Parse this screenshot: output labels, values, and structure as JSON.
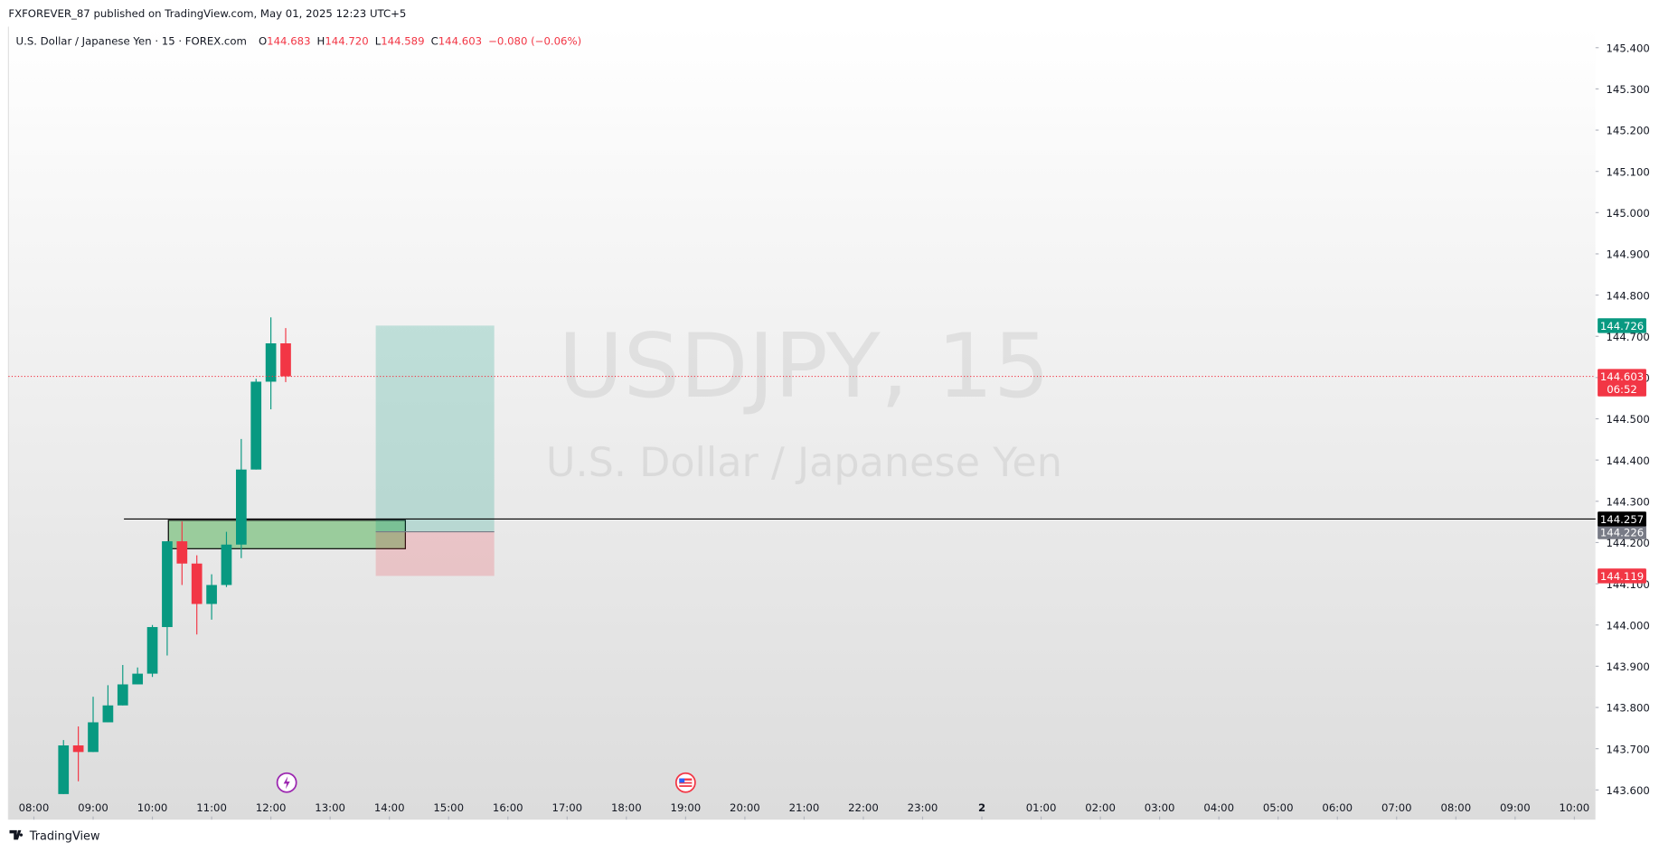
{
  "header": "FXFOREVER_87 published on TradingView.com, May 01, 2025 12:23 UTC+5",
  "footer": "TradingView",
  "chart_data": {
    "type": "candlestick",
    "symbol": "U.S. Dollar / Japanese Yen · 15 · FOREX.com",
    "legend": [
      {
        "label": "O",
        "value": "144.683"
      },
      {
        "label": "H",
        "value": "144.720"
      },
      {
        "label": "L",
        "value": "144.589"
      },
      {
        "label": "C",
        "value": "144.603"
      }
    ],
    "change": "−0.080 (−0.06%)",
    "watermark": [
      "USDJPY, 15",
      "U.S. Dollar / Japanese Yen"
    ],
    "up_color": "#089981",
    "down_color": "#f23645",
    "x": [
      8.5,
      8.75,
      9,
      9.25,
      9.5,
      9.75,
      10,
      10.25,
      10.5,
      10.75,
      11,
      11.25,
      11.5,
      11.75,
      12,
      12.25
    ],
    "open": [
      143.59,
      143.708,
      143.692,
      143.764,
      143.805,
      143.856,
      143.882,
      143.995,
      144.203,
      144.149,
      144.051,
      144.097,
      144.195,
      144.377,
      144.59,
      144.683
    ],
    "high": [
      143.721,
      143.754,
      143.826,
      143.854,
      143.903,
      143.897,
      144.0,
      144.203,
      144.251,
      144.169,
      144.123,
      144.226,
      144.451,
      144.597,
      144.746,
      144.72
    ],
    "low": [
      143.59,
      143.621,
      143.692,
      143.764,
      143.805,
      143.856,
      143.874,
      143.926,
      144.097,
      143.977,
      144.013,
      144.092,
      144.162,
      144.377,
      144.523,
      144.589
    ],
    "close": [
      143.708,
      143.692,
      143.764,
      143.805,
      143.856,
      143.882,
      143.995,
      144.203,
      144.149,
      144.051,
      144.097,
      144.195,
      144.377,
      144.59,
      144.683,
      144.603
    ],
    "xlim": [
      7.571,
      34.357
    ],
    "xticks": [
      {
        "value": 8,
        "label": "08:00"
      },
      {
        "value": 9,
        "label": "09:00"
      },
      {
        "value": 10,
        "label": "10:00"
      },
      {
        "value": 11,
        "label": "11:00"
      },
      {
        "value": 12,
        "label": "12:00"
      },
      {
        "value": 13,
        "label": "13:00"
      },
      {
        "value": 14,
        "label": "14:00"
      },
      {
        "value": 15,
        "label": "15:00"
      },
      {
        "value": 16,
        "label": "16:00"
      },
      {
        "value": 17,
        "label": "17:00"
      },
      {
        "value": 18,
        "label": "18:00"
      },
      {
        "value": 19,
        "label": "19:00"
      },
      {
        "value": 20,
        "label": "20:00"
      },
      {
        "value": 21,
        "label": "21:00"
      },
      {
        "value": 22,
        "label": "22:00"
      },
      {
        "value": 23,
        "label": "23:00"
      },
      {
        "value": 24,
        "label": "2"
      },
      {
        "value": 25,
        "label": "01:00"
      },
      {
        "value": 26,
        "label": "02:00"
      },
      {
        "value": 27,
        "label": "03:00"
      },
      {
        "value": 28,
        "label": "04:00"
      },
      {
        "value": 29,
        "label": "05:00"
      },
      {
        "value": 30,
        "label": "06:00"
      },
      {
        "value": 31,
        "label": "07:00"
      },
      {
        "value": 32,
        "label": "08:00"
      },
      {
        "value": 33,
        "label": "09:00"
      },
      {
        "value": 34,
        "label": "10:00"
      }
    ],
    "ylim": [
      143.528,
      145.451
    ],
    "yticks": [
      {
        "value": 145.4,
        "label": "145.400"
      },
      {
        "value": 145.3,
        "label": "145.300"
      },
      {
        "value": 145.2,
        "label": "145.200"
      },
      {
        "value": 145.1,
        "label": "145.100"
      },
      {
        "value": 145.0,
        "label": "145.000"
      },
      {
        "value": 144.9,
        "label": "144.900"
      },
      {
        "value": 144.8,
        "label": "144.800"
      },
      {
        "value": 144.7,
        "label": "144.700"
      },
      {
        "value": 144.6,
        "label": "144.600"
      },
      {
        "value": 144.5,
        "label": "144.500"
      },
      {
        "value": 144.4,
        "label": "144.400"
      },
      {
        "value": 144.3,
        "label": "144.300"
      },
      {
        "value": 144.2,
        "label": "144.200"
      },
      {
        "value": 144.1,
        "label": "144.100"
      },
      {
        "value": 144.0,
        "label": "144.000"
      },
      {
        "value": 143.9,
        "label": "143.900"
      },
      {
        "value": 143.8,
        "label": "143.800"
      },
      {
        "value": 143.7,
        "label": "143.700"
      },
      {
        "value": 143.6,
        "label": "143.600"
      }
    ],
    "countdown": "06:52",
    "level": {
      "price": 144.257,
      "x_start": 9.52
    },
    "zone": {
      "x_start": 10.27,
      "x_end": 14.27,
      "top": 144.254,
      "bottom": 144.185
    },
    "position": {
      "x_start": 13.77,
      "x_end": 15.77,
      "target": 144.726,
      "entry": 144.226,
      "stop": 144.119
    }
  }
}
